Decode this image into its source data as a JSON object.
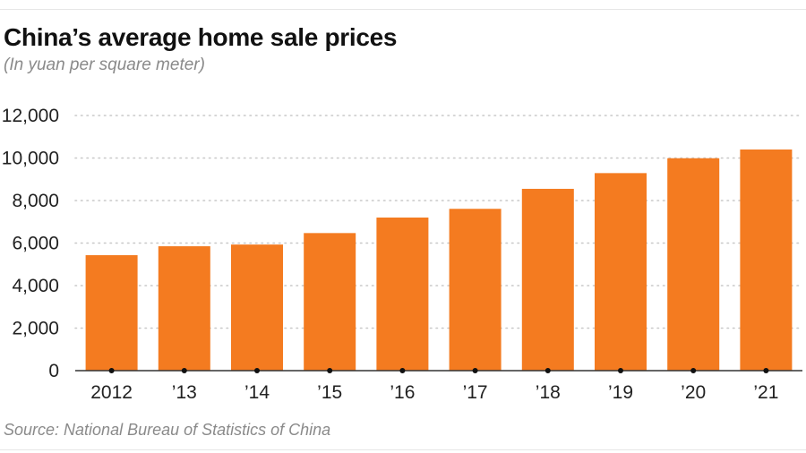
{
  "header": {
    "title": "China’s average home sale prices",
    "subtitle": "(In yuan per square meter)"
  },
  "footer": {
    "source": "Source: National Bureau of Statistics of China"
  },
  "colors": {
    "bar": "#f47b20",
    "grid": "#c8c8c8",
    "baseline": "#333333"
  },
  "chart_data": {
    "type": "bar",
    "title": "China’s average home sale prices",
    "subtitle": "(In yuan per square meter)",
    "categories": [
      "2012",
      "’13",
      "’14",
      "’15",
      "’16",
      "’17",
      "’18",
      "’19",
      "’20",
      "’21"
    ],
    "values": [
      5430,
      5850,
      5930,
      6470,
      7200,
      7610,
      8550,
      9290,
      9990,
      10400
    ],
    "ylim": [
      0,
      12000
    ],
    "yticks": [
      "0",
      "2,000",
      "4,000",
      "6,000",
      "8,000",
      "10,000",
      "12,000"
    ],
    "ytick_values": [
      0,
      2000,
      4000,
      6000,
      8000,
      10000,
      12000
    ],
    "grid": "horizontal-dotted",
    "legend": "none"
  }
}
